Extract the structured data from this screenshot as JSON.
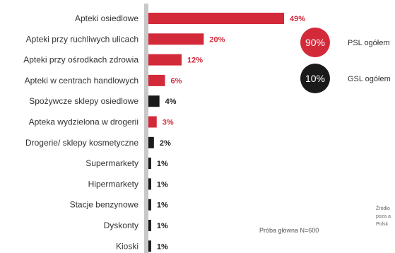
{
  "chart_data": {
    "type": "bar",
    "orientation": "horizontal",
    "categories": [
      "Apteki osiedlowe",
      "Apteki przy ruchliwych ulicach",
      "Apteki przy ośrodkach zdrowia",
      "Apteki w centrach handlowych",
      "Spożywcze sklepy osiedlowe",
      "Apteka wydzielona w drogerii",
      "Drogerie/ sklepy kosmetyczne",
      "Supermarkety",
      "Hipermarkety",
      "Stacje benzynowe",
      "Dyskonty",
      "Kioski"
    ],
    "values": [
      49,
      20,
      12,
      6,
      4,
      3,
      2,
      1,
      1,
      1,
      1,
      1
    ],
    "value_labels": [
      "49%",
      "20%",
      "12%",
      "6%",
      "4%",
      "3%",
      "2%",
      "1%",
      "1%",
      "1%",
      "1%",
      "1%"
    ],
    "bar_groups": [
      "PSL",
      "PSL",
      "PSL",
      "PSL",
      "GSL",
      "PSL",
      "GSL",
      "GSL",
      "GSL",
      "GSL",
      "GSL",
      "GSL"
    ],
    "colors": {
      "PSL": "#d32a3a",
      "GSL": "#1a1a1a",
      "axis": "#c8c8c8"
    },
    "legend": [
      {
        "key": "PSL",
        "value_text": "90%",
        "label": "PSL ogółem"
      },
      {
        "key": "GSL",
        "value_text": "10%",
        "label": "GSL ogółem"
      }
    ],
    "legend_placement": "right",
    "grid": false,
    "note": "Próba główna N=600",
    "source_fragment": [
      "Źródło",
      "poza a",
      "Polsk"
    ]
  }
}
